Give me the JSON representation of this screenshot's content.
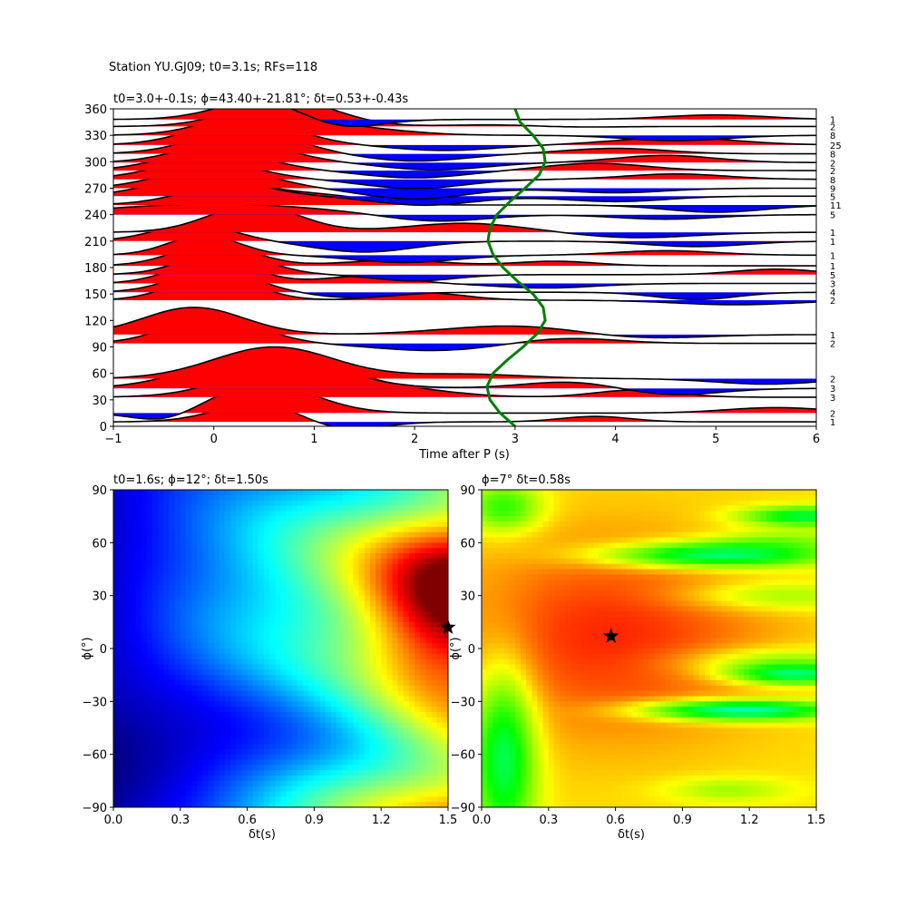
{
  "figure": {
    "suptitle": "Station YU.GJ09; t0=3.1s; RFs=118"
  },
  "chart_data": [
    {
      "type": "line",
      "title": "t0=3.0+-0.1s; ϕ=43.40+-21.81°; δt=0.53+-0.43s",
      "xlabel": "Time after P (s)",
      "ylabel": "",
      "xlim": [
        -1,
        6
      ],
      "ylim": [
        0,
        360
      ],
      "xticks": [
        -1,
        0,
        1,
        2,
        3,
        4,
        5,
        6
      ],
      "yticks": [
        0,
        30,
        60,
        90,
        120,
        150,
        180,
        210,
        240,
        270,
        300,
        330,
        360
      ],
      "baz_counts_right": [
        {
          "baz": 5,
          "count": "1"
        },
        {
          "baz": 15,
          "count": "2"
        },
        {
          "baz": 33,
          "count": "3"
        },
        {
          "baz": 43,
          "count": "3"
        },
        {
          "baz": 54,
          "count": "2"
        },
        {
          "baz": 94,
          "count": "2"
        },
        {
          "baz": 104,
          "count": "1"
        },
        {
          "baz": 143,
          "count": "2"
        },
        {
          "baz": 152,
          "count": "4"
        },
        {
          "baz": 162,
          "count": "3"
        },
        {
          "baz": 172,
          "count": "5"
        },
        {
          "baz": 182,
          "count": "1"
        },
        {
          "baz": 194,
          "count": "1"
        },
        {
          "baz": 210,
          "count": "1"
        },
        {
          "baz": 220,
          "count": "1"
        },
        {
          "baz": 240,
          "count": "5"
        },
        {
          "baz": 251,
          "count": "11"
        },
        {
          "baz": 261,
          "count": "5"
        },
        {
          "baz": 270,
          "count": "9"
        },
        {
          "baz": 280,
          "count": "8"
        },
        {
          "baz": 290,
          "count": "2"
        },
        {
          "baz": 299,
          "count": "2"
        },
        {
          "baz": 309,
          "count": "8"
        },
        {
          "baz": 319,
          "count": "25"
        },
        {
          "baz": 330,
          "count": "8"
        },
        {
          "baz": 340,
          "count": "2"
        },
        {
          "baz": 348,
          "count": "1"
        }
      ],
      "pulses": [
        [
          0.5,
          0.45,
          22
        ],
        [
          1.2,
          0.4,
          -12
        ],
        [
          3.8,
          0.35,
          6
        ],
        [
          5.6,
          0.5,
          6
        ],
        [
          0.5,
          0.5,
          32
        ],
        [
          -0.5,
          0.3,
          -10
        ],
        [
          4.2,
          0.4,
          8
        ],
        [
          0.8,
          0.6,
          38
        ],
        [
          2.0,
          0.5,
          6
        ],
        [
          4.5,
          0.5,
          -8
        ],
        [
          0.5,
          0.65,
          40
        ],
        [
          3.6,
          0.5,
          8
        ],
        [
          5.5,
          0.5,
          -6
        ],
        [
          0.6,
          0.6,
          35
        ],
        [
          2.5,
          0.6,
          5
        ],
        [
          3.5,
          0.5,
          6
        ],
        [
          0.0,
          0.45,
          30
        ],
        [
          2.2,
          0.6,
          -8
        ],
        [
          4.2,
          0.6,
          -5
        ],
        [
          -0.2,
          0.5,
          30
        ],
        [
          3.0,
          0.7,
          10
        ],
        [
          5.2,
          0.6,
          -5
        ],
        [
          0.0,
          0.4,
          28
        ],
        [
          2.1,
          0.4,
          8
        ],
        [
          4.8,
          0.4,
          -8
        ],
        [
          0.0,
          0.4,
          25
        ],
        [
          1.4,
          0.4,
          -6
        ],
        [
          3.3,
          0.5,
          -5
        ],
        [
          0.0,
          0.4,
          26
        ],
        [
          1.5,
          0.4,
          8
        ],
        [
          5.6,
          0.4,
          6
        ],
        [
          0.1,
          0.4,
          26
        ],
        [
          2.0,
          0.4,
          -7
        ],
        [
          3.4,
          0.4,
          5
        ],
        [
          0.0,
          0.4,
          24
        ],
        [
          1.8,
          0.5,
          6
        ],
        [
          4.5,
          0.5,
          5
        ],
        [
          -0.1,
          0.35,
          22
        ],
        [
          1.9,
          0.5,
          -8
        ],
        [
          4.8,
          0.5,
          -6
        ],
        [
          -0.2,
          0.4,
          18
        ],
        [
          1.5,
          0.5,
          -12
        ],
        [
          4.2,
          0.6,
          -6
        ],
        [
          0.4,
          0.45,
          30
        ],
        [
          2.5,
          0.6,
          10
        ],
        [
          4.5,
          0.5,
          -5
        ],
        [
          0.0,
          1.0,
          12
        ],
        [
          2.2,
          0.5,
          -8
        ],
        [
          5.0,
          0.5,
          -8
        ],
        [
          0.2,
          0.5,
          22
        ],
        [
          1.2,
          0.4,
          8
        ],
        [
          4.0,
          0.5,
          -6
        ],
        [
          -0.1,
          0.5,
          22
        ],
        [
          2.1,
          0.5,
          -10
        ],
        [
          4.0,
          0.5,
          -5
        ],
        [
          0.0,
          0.5,
          24
        ],
        [
          2.0,
          0.5,
          -12
        ],
        [
          4.6,
          0.5,
          6
        ],
        [
          -0.1,
          0.5,
          20
        ],
        [
          2.0,
          0.5,
          -10
        ],
        [
          3.8,
          0.5,
          8
        ],
        [
          0.0,
          0.5,
          22
        ],
        [
          2.0,
          0.5,
          -8
        ],
        [
          4.5,
          0.5,
          8
        ],
        [
          0.2,
          0.5,
          24
        ],
        [
          2.2,
          0.5,
          -8
        ],
        [
          4.0,
          0.5,
          6
        ],
        [
          0.3,
          0.5,
          26
        ],
        [
          2.0,
          0.5,
          -8
        ],
        [
          4.6,
          0.6,
          8
        ],
        [
          0.3,
          0.5,
          28
        ],
        [
          2.3,
          0.5,
          -6
        ],
        [
          4.6,
          0.5,
          -6
        ],
        [
          0.5,
          0.5,
          28
        ],
        [
          1.5,
          0.5,
          6
        ],
        [
          3.2,
          0.5,
          -4
        ],
        [
          0.7,
          0.5,
          30
        ],
        [
          3.0,
          0.5,
          5
        ],
        [
          5.0,
          0.5,
          5
        ]
      ],
      "t0_curve": {
        "baz": [
          0,
          15,
          30,
          45,
          60,
          75,
          90,
          105,
          120,
          135,
          150,
          165,
          180,
          195,
          210,
          225,
          240,
          255,
          270,
          285,
          300,
          315,
          330,
          345,
          360
        ],
        "t": [
          3.0,
          2.85,
          2.75,
          2.72,
          2.78,
          2.92,
          3.08,
          3.22,
          3.3,
          3.28,
          3.18,
          3.02,
          2.88,
          2.78,
          2.73,
          2.75,
          2.82,
          2.95,
          3.1,
          3.24,
          3.3,
          3.28,
          3.18,
          3.05,
          3.0
        ]
      },
      "line_color": "#000000",
      "positive_fill": "#ff0000",
      "negative_fill": "#0000ff",
      "curve_color": "#008000"
    },
    {
      "type": "heatmap",
      "title": "t0=1.6s; ϕ=12°; δt=1.50s",
      "xlabel": "δt(s)",
      "ylabel": "ϕ(°)",
      "xlim": [
        0,
        1.5
      ],
      "ylim": [
        -90,
        90
      ],
      "xticks": [
        "0.0",
        "0.3",
        "0.6",
        "0.9",
        "1.2",
        "1.5"
      ],
      "yticks": [
        "−90",
        "−60",
        "−30",
        "0",
        "30",
        "60",
        "90"
      ],
      "colormap": "jet",
      "best": {
        "dt": 1.5,
        "phi": 12
      }
    },
    {
      "type": "heatmap",
      "title": "ϕ=7° δt=0.58s",
      "xlabel": "δt(s)",
      "ylabel": "ϕ(°)",
      "xlim": [
        0,
        1.5
      ],
      "ylim": [
        -90,
        90
      ],
      "xticks": [
        "0.0",
        "0.3",
        "0.6",
        "0.9",
        "1.2",
        "1.5"
      ],
      "yticks": [
        "−90",
        "−60",
        "−30",
        "0",
        "30",
        "60",
        "90"
      ],
      "colormap": "hsv-reversed",
      "best": {
        "dt": 0.58,
        "phi": 7
      }
    }
  ]
}
